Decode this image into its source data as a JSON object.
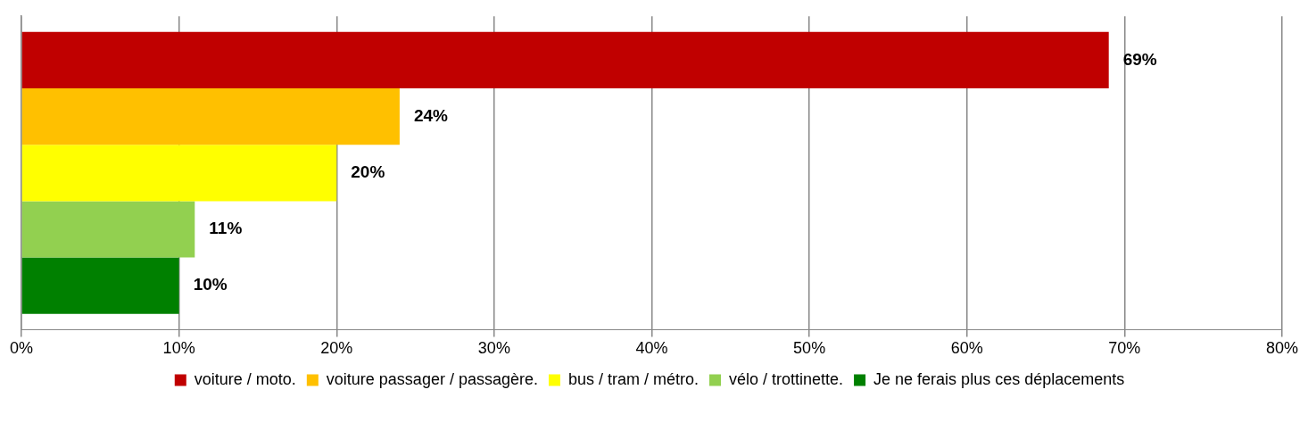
{
  "chart_data": {
    "type": "bar",
    "orientation": "horizontal",
    "categories": [
      null
    ],
    "series": [
      {
        "name": "voiture / moto.",
        "color": "#c00000",
        "values": [
          69
        ],
        "value_labels": [
          "69%"
        ]
      },
      {
        "name": "voiture passager / passagère.",
        "color": "#ffc000",
        "values": [
          24
        ],
        "value_labels": [
          "24%"
        ]
      },
      {
        "name": "bus / tram / métro.",
        "color": "#ffff00",
        "values": [
          20
        ],
        "value_labels": [
          "20%"
        ]
      },
      {
        "name": "vélo / trottinette.",
        "color": "#92d050",
        "values": [
          11
        ],
        "value_labels": [
          "11%"
        ]
      },
      {
        "name": "Je ne ferais plus ces déplacements",
        "color": "#008000",
        "values": [
          10
        ],
        "value_labels": [
          "10%"
        ]
      }
    ],
    "xlim": [
      0,
      80
    ],
    "xticks": [
      {
        "value": 0,
        "label": "0%"
      },
      {
        "value": 10,
        "label": "10%"
      },
      {
        "value": 20,
        "label": "20%"
      },
      {
        "value": 30,
        "label": "30%"
      },
      {
        "value": 40,
        "label": "40%"
      },
      {
        "value": 50,
        "label": "50%"
      },
      {
        "value": 60,
        "label": "60%"
      },
      {
        "value": 70,
        "label": "70%"
      },
      {
        "value": 80,
        "label": "80%"
      }
    ],
    "grid": "x",
    "legend": "bottom"
  }
}
